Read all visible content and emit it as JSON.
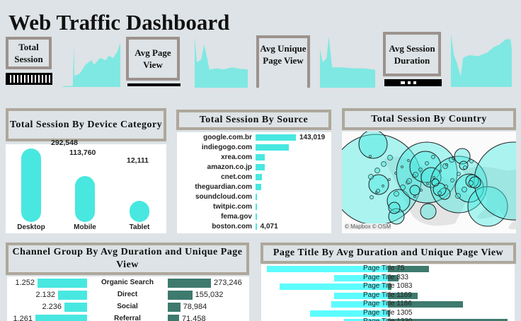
{
  "title": "Web Traffic Dashboard",
  "kpis": [
    {
      "label": "Total Session"
    },
    {
      "label": "Avg Page View"
    },
    {
      "label": "Avg Unique Page View"
    },
    {
      "label": "Avg Session Duration"
    }
  ],
  "device": {
    "title": "Total Session By Device Category",
    "items": [
      {
        "label": "Desktop",
        "value": "292,548",
        "v": 292548
      },
      {
        "label": "Mobile",
        "value": "113,760",
        "v": 113760
      },
      {
        "label": "Tablet",
        "value": "12,111",
        "v": 12111
      }
    ]
  },
  "source": {
    "title": "Total Session By Source",
    "items": [
      {
        "label": "google.com.br",
        "value": "143,019",
        "v": 143019
      },
      {
        "label": "indiegogo.com",
        "v": 118000
      },
      {
        "label": "xrea.com",
        "v": 33000
      },
      {
        "label": "amazon.co.jp",
        "v": 33000
      },
      {
        "label": "cnet.com",
        "v": 22000
      },
      {
        "label": "theguardian.com",
        "v": 20000
      },
      {
        "label": "soundcloud.com",
        "v": 6000
      },
      {
        "label": "twitpic.com",
        "v": 4500
      },
      {
        "label": "fema.gov",
        "v": 4300
      },
      {
        "label": "boston.com",
        "value": "4,071",
        "v": 4071
      }
    ]
  },
  "country": {
    "title": "Total Session By Country",
    "attribution": "© Mapbox  © OSM"
  },
  "channel": {
    "title": "Channel Group By Avg Duration and Unique Page View",
    "items": [
      {
        "label": "Organic Search",
        "duration": "1.252",
        "views": "273,246",
        "d": 1.252,
        "u": 273246
      },
      {
        "label": "Direct",
        "duration": "2.132",
        "views": "155,032",
        "d": 2.132,
        "u": 155032
      },
      {
        "label": "Social",
        "duration": "2.236",
        "views": "78,984",
        "d": 2.236,
        "u": 78984
      },
      {
        "label": "Referral",
        "duration": "1.261",
        "views": "71,458",
        "d": 1.261,
        "u": 71458
      }
    ]
  },
  "pagetitle": {
    "title": "Page Title By Avg Duration and Unique Page View",
    "items": [
      {
        "label": "Page Title 75",
        "d": 171,
        "u": 58
      },
      {
        "label": "Page Title 333",
        "d": 76,
        "u": 15
      },
      {
        "label": "Page Title 1083",
        "d": 153,
        "u": 5
      },
      {
        "label": "Page Title 1169",
        "d": 76,
        "u": 42
      },
      {
        "label": "Page Title 1186",
        "d": 80,
        "u": 106
      },
      {
        "label": "Page Title 1305",
        "d": 110,
        "u": 3
      },
      {
        "label": "Page Title 1330",
        "d": 62,
        "u": 169
      }
    ]
  },
  "colors": {
    "cyan": "#48e8e0",
    "spark": "#7fe8e2",
    "dark": "#3e7a6e",
    "border": "#9c928d"
  }
}
